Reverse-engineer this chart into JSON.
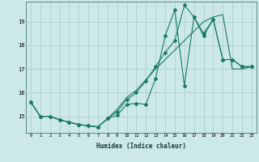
{
  "xlabel": "Humidex (Indice chaleur)",
  "bg_color": "#cce8e8",
  "line_color": "#1a7a6a",
  "line1_x": [
    0,
    1,
    2,
    3,
    4,
    5,
    6,
    7,
    8,
    9,
    10,
    11,
    12,
    13,
    14,
    15,
    16,
    17,
    18,
    19,
    20,
    21,
    22,
    23
  ],
  "line1_y": [
    15.6,
    15.0,
    15.0,
    14.85,
    14.75,
    14.65,
    14.6,
    14.55,
    14.9,
    15.05,
    15.5,
    15.55,
    15.5,
    16.6,
    18.4,
    19.5,
    16.3,
    19.2,
    18.5,
    19.1,
    17.4,
    17.4,
    17.1,
    17.1
  ],
  "line2_x": [
    0,
    1,
    2,
    3,
    4,
    5,
    6,
    7,
    8,
    9,
    10,
    11,
    12,
    13,
    14,
    15,
    16,
    17,
    18,
    19,
    20,
    21,
    22,
    23
  ],
  "line2_y": [
    15.6,
    15.0,
    15.0,
    14.85,
    14.75,
    14.65,
    14.6,
    14.55,
    14.9,
    15.2,
    15.7,
    16.0,
    16.5,
    17.1,
    17.7,
    18.2,
    19.7,
    19.2,
    18.4,
    19.1,
    17.4,
    17.4,
    17.1,
    17.1
  ],
  "line3_x": [
    0,
    1,
    2,
    3,
    4,
    5,
    6,
    7,
    8,
    9,
    10,
    11,
    12,
    13,
    14,
    15,
    16,
    17,
    18,
    19,
    20,
    21,
    22,
    23
  ],
  "line3_y": [
    15.6,
    15.0,
    15.0,
    14.85,
    14.75,
    14.65,
    14.6,
    14.55,
    14.9,
    15.3,
    15.8,
    16.1,
    16.55,
    17.0,
    17.4,
    17.8,
    18.2,
    18.6,
    19.0,
    19.2,
    19.3,
    17.0,
    17.0,
    17.1
  ],
  "ylim": [
    14.3,
    19.85
  ],
  "yticks": [
    15,
    16,
    17,
    18,
    19
  ],
  "xlim": [
    -0.5,
    23.5
  ],
  "xticks": [
    0,
    1,
    2,
    3,
    4,
    5,
    6,
    7,
    8,
    9,
    10,
    11,
    12,
    13,
    14,
    15,
    16,
    17,
    18,
    19,
    20,
    21,
    22,
    23
  ]
}
